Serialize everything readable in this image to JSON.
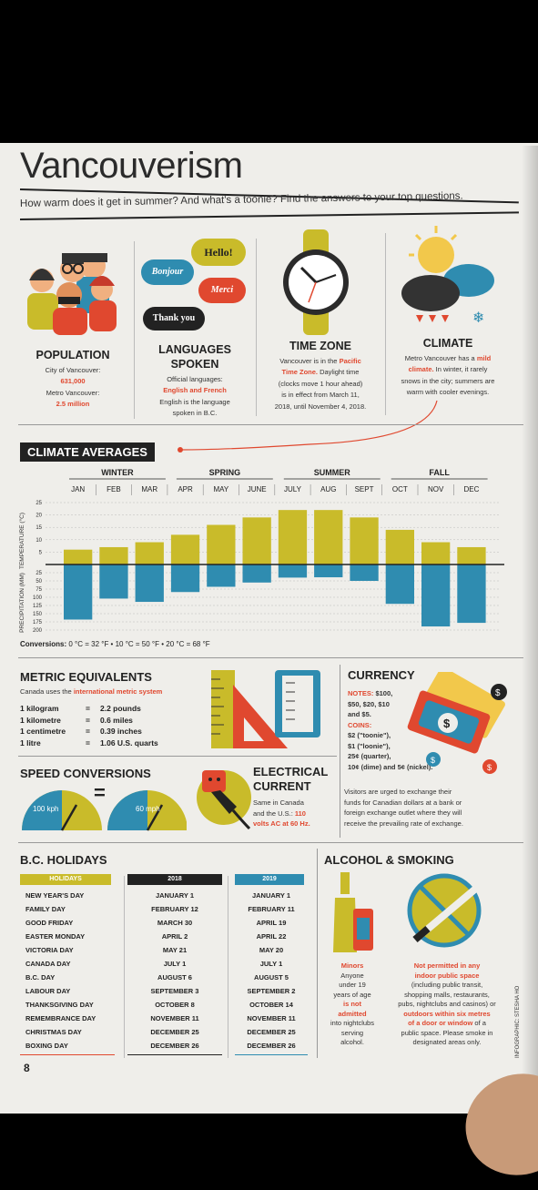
{
  "title": "Vancouverism",
  "subtitle": "How warm does it get in summer? And what's a toonie? Find the answers to your top questions.",
  "population": {
    "heading": "POPULATION",
    "city_label": "City of Vancouver:",
    "city_value": "631,000",
    "metro_label": "Metro Vancouver:",
    "metro_value": "2.5 million"
  },
  "languages": {
    "heading_1": "LANGUAGES",
    "heading_2": "SPOKEN",
    "bubbles": [
      "Hello!",
      "Bonjour",
      "Merci",
      "Thank you"
    ],
    "line_1": "Official languages:",
    "line_2": "English and French",
    "line_3": "English is the language",
    "line_4": "spoken in B.C."
  },
  "time_zone": {
    "heading": "TIME ZONE",
    "line_1": "Vancouver is in the",
    "line_1_red": "Pacific",
    "line_2_red": "Time Zone.",
    "line_2": "Daylight time",
    "line_3": "(clocks move 1 hour ahead)",
    "line_4": "is in effect from March 11,",
    "line_5": "2018, until November 4, 2018."
  },
  "climate": {
    "heading": "CLIMATE",
    "line_1": "Metro Vancouver has a",
    "line_1_red": "mild",
    "line_2_red": "climate.",
    "line_2": "In winter, it rarely",
    "line_3": "snows in the city; summers are",
    "line_4": "warm with cooler evenings."
  },
  "chart_data": {
    "type": "bar",
    "title": "CLIMATE AVERAGES",
    "seasons": [
      "WINTER",
      "SPRING",
      "SUMMER",
      "FALL"
    ],
    "categories": [
      "JAN",
      "FEB",
      "MAR",
      "APR",
      "MAY",
      "JUNE",
      "JULY",
      "AUG",
      "SEPT",
      "OCT",
      "NOV",
      "DEC"
    ],
    "series": [
      {
        "name": "TEMPERATURE (°C)",
        "values": [
          6,
          7,
          9,
          12,
          16,
          19,
          22,
          22,
          19,
          14,
          9,
          7
        ],
        "color": "#c9bb2a"
      },
      {
        "name": "PRECIPITATION (MM)",
        "values": [
          168,
          104,
          114,
          84,
          68,
          55,
          40,
          39,
          50,
          120,
          189,
          178
        ],
        "color": "#2f8cb0"
      }
    ],
    "temp_ticks": [
      "25",
      "20",
      "15",
      "10",
      "5"
    ],
    "precip_ticks": [
      "25",
      "50",
      "75",
      "100",
      "125",
      "150",
      "175",
      "200"
    ],
    "temp_ylim": [
      0,
      25
    ],
    "precip_ylim": [
      0,
      200
    ],
    "ylabel_top": "TEMPERATURE (°C)",
    "ylabel_bottom": "PRECIPITATION (MM)",
    "conversions_label": "Conversions:",
    "conversions": "0 °C = 32 °F  •  10 °C = 50 °F  •  20 °C = 68 °F"
  },
  "metric": {
    "heading": "METRIC EQUIVALENTS",
    "intro": "Canada uses the",
    "intro_red": "international metric system",
    "rows": [
      {
        "left": "1 kilogram",
        "right": "2.2 pounds"
      },
      {
        "left": "1 kilometre",
        "right": "0.6 miles"
      },
      {
        "left": "1 centimetre",
        "right": "0.39 inches"
      },
      {
        "left": "1 litre",
        "right": "1.06 U.S. quarts"
      }
    ],
    "eq": "="
  },
  "currency": {
    "heading": "CURRENCY",
    "notes_label": "NOTES:",
    "notes_1": "$100,",
    "notes_2": "$50, $20, $10",
    "notes_3": "and $5.",
    "coins_label": "COINS:",
    "coins_1": "$2 (\"toonie\"),",
    "coins_2": "$1 (\"loonie\"),",
    "coins_3": "25¢ (quarter),",
    "coins_4": "10¢ (dime) and 5¢ (nickel).",
    "body_1": "Visitors are urged to exchange their",
    "body_2": "funds for Canadian dollars at a bank or",
    "body_3": "foreign exchange outlet where they will",
    "body_4": "receive the prevailing rate of exchange."
  },
  "speed": {
    "heading": "SPEED CONVERSIONS",
    "left": "100 kph",
    "eq": "=",
    "right": "60 mph"
  },
  "electrical": {
    "heading_1": "ELECTRICAL",
    "heading_2": "CURRENT",
    "line_1": "Same in Canada",
    "line_2": "and the U.S.:",
    "line_2_red": "110",
    "line_3_red": "volts AC at 60 Hz."
  },
  "holidays": {
    "heading": "B.C. HOLIDAYS",
    "col_heads": [
      "HOLIDAYS",
      "2018",
      "2019"
    ],
    "rows": [
      [
        "NEW YEAR'S DAY",
        "JANUARY 1",
        "JANUARY 1"
      ],
      [
        "FAMILY DAY",
        "FEBRUARY 12",
        "FEBRUARY 11"
      ],
      [
        "GOOD FRIDAY",
        "MARCH 30",
        "APRIL 19"
      ],
      [
        "EASTER MONDAY",
        "APRIL 2",
        "APRIL 22"
      ],
      [
        "VICTORIA DAY",
        "MAY 21",
        "MAY 20"
      ],
      [
        "CANADA DAY",
        "JULY 1",
        "JULY 1"
      ],
      [
        "B.C. DAY",
        "AUGUST 6",
        "AUGUST 5"
      ],
      [
        "LABOUR DAY",
        "SEPTEMBER 3",
        "SEPTEMBER 2"
      ],
      [
        "THANKSGIVING DAY",
        "OCTOBER 8",
        "OCTOBER 14"
      ],
      [
        "REMEMBRANCE DAY",
        "NOVEMBER 11",
        "NOVEMBER 11"
      ],
      [
        "CHRISTMAS DAY",
        "DECEMBER 25",
        "DECEMBER 25"
      ],
      [
        "BOXING DAY",
        "DECEMBER 26",
        "DECEMBER 26"
      ]
    ]
  },
  "alcohol": {
    "heading": "ALCOHOL & SMOKING",
    "minors_red": "Minors",
    "minors_1": "Anyone",
    "minors_2": "under 19",
    "minors_3": "years of age",
    "minors_4_red": "is not",
    "minors_5_red": "admitted",
    "minors_6": "into nightclubs",
    "minors_7": "serving",
    "minors_8": "alcohol.",
    "smoke_1_red": "Not permitted in any",
    "smoke_2_red": "indoor public space",
    "smoke_3": "(including public transit,",
    "smoke_4": "shopping malls, restaurants,",
    "smoke_5": "pubs, nightclubs and casinos) or",
    "smoke_6_red": "outdoors within six metres",
    "smoke_7_red": "of a door or window",
    "smoke_7": "of a",
    "smoke_8": "public space. Please smoke in",
    "smoke_9": "designated areas only."
  },
  "credit": "INFOGRAPHIC: STESHA HO",
  "page_number": "8"
}
